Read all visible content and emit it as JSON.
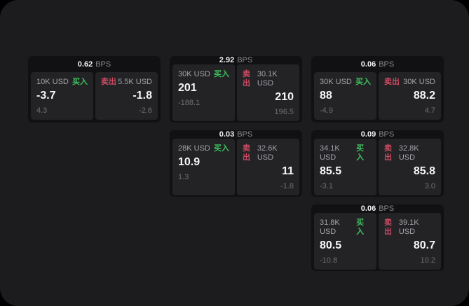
{
  "labels": {
    "bps_unit": "BPS",
    "buy": "买入",
    "sell": "卖出"
  },
  "colors": {
    "surface": "#1c1c1e",
    "card": "#111113",
    "panel": "#232326",
    "buy_green": "#3fbf5e",
    "sell_red": "#cc4a63"
  },
  "cards": [
    {
      "bps": "0.62",
      "buy": {
        "size": "10K USD",
        "price": "-3.7",
        "sub": "4.3"
      },
      "sell": {
        "size": "5.5K USD",
        "price": "-1.8",
        "sub": "-2.6"
      }
    },
    {
      "bps": "2.92",
      "buy": {
        "size": "30K USD",
        "price": "201",
        "sub": "-188.1"
      },
      "sell": {
        "size": "30.1K USD",
        "price": "210",
        "sub": "196.5"
      }
    },
    {
      "bps": "0.06",
      "buy": {
        "size": "30K USD",
        "price": "88",
        "sub": "-4.9"
      },
      "sell": {
        "size": "30K USD",
        "price": "88.2",
        "sub": "4.7"
      }
    },
    {
      "bps": "0.03",
      "buy": {
        "size": "28K USD",
        "price": "10.9",
        "sub": "1.3"
      },
      "sell": {
        "size": "32.6K USD",
        "price": "11",
        "sub": "-1.8"
      }
    },
    {
      "bps": "0.09",
      "buy": {
        "size": "34.1K USD",
        "price": "85.5",
        "sub": "-3.1"
      },
      "sell": {
        "size": "32.8K USD",
        "price": "85.8",
        "sub": "3.0"
      }
    },
    {
      "bps": "0.06",
      "buy": {
        "size": "31.8K USD",
        "price": "80.5",
        "sub": "-10.8"
      },
      "sell": {
        "size": "39.1K USD",
        "price": "80.7",
        "sub": "10.2"
      }
    }
  ]
}
